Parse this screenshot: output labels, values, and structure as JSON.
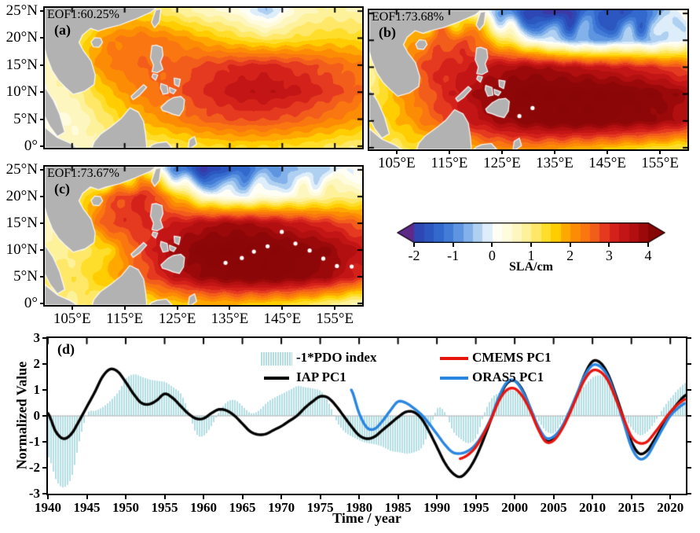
{
  "figure": {
    "background": "#ffffff"
  },
  "panels": {
    "a": {
      "letter": "(a)",
      "eof_label": "EOF1:60.25%"
    },
    "b": {
      "letter": "(b)",
      "eof_label": "EOF1:73.68%"
    },
    "c": {
      "letter": "(c)",
      "eof_label": "EOF1:73.67%"
    },
    "d": {
      "letter": "(d)",
      "xlabel": "Time / year",
      "ylabel": "Normalized Value"
    }
  },
  "map_axes": {
    "x_tick_values": [
      105,
      115,
      125,
      135,
      145,
      155
    ],
    "x_tick_labels": [
      "105°E",
      "115°E",
      "125°E",
      "135°E",
      "145°E",
      "155°E"
    ],
    "y_tick_values": [
      0,
      5,
      10,
      15,
      20,
      25
    ],
    "y_tick_labels": [
      "0°",
      "5°N",
      "10°N",
      "15°N",
      "20°N",
      "25°N"
    ],
    "lon_range": [
      99.8,
      160.2
    ],
    "lat_range": [
      -0.3,
      25.6
    ]
  },
  "colorbar": {
    "label": "SLA/cm",
    "tick_values": [
      -2,
      -1,
      0,
      1,
      2,
      3,
      4
    ],
    "tick_labels": [
      "-2",
      "-1",
      "0",
      "1",
      "2",
      "3",
      "4"
    ],
    "min": -2,
    "max": 4,
    "band_step": 0.25,
    "left_arrow_color": "#5e2a8a",
    "right_arrow_color": "#860606"
  },
  "legend": {
    "items": [
      {
        "label": "-1*PDO index",
        "swatch": "patch",
        "color": "#b2dde2"
      },
      {
        "label": "IAP PC1",
        "swatch": "line",
        "color": "#000000"
      },
      {
        "label": "CMEMS PC1",
        "swatch": "line",
        "color": "#e8150d"
      },
      {
        "label": "ORAS5 PC1",
        "swatch": "line",
        "color": "#2a85e0"
      }
    ]
  },
  "d_axes": {
    "x_tick_values": [
      1940,
      1945,
      1950,
      1955,
      1960,
      1965,
      1970,
      1975,
      1980,
      1985,
      1990,
      1995,
      2000,
      2005,
      2010,
      2015,
      2020
    ],
    "x_tick_labels": [
      "1940",
      "1945",
      "1950",
      "1955",
      "1960",
      "1965",
      "1970",
      "1975",
      "1980",
      "1985",
      "1990",
      "1995",
      "2000",
      "2005",
      "2010",
      "2015",
      "2020"
    ],
    "y_tick_values": [
      3,
      2,
      1,
      0,
      -1,
      -2,
      -3
    ],
    "y_tick_labels": [
      "3",
      "2",
      "1",
      "0",
      "-1",
      "-2",
      "-3"
    ],
    "xlim": [
      1940,
      2022
    ],
    "ylim": [
      -3,
      3
    ]
  },
  "chart_data": [
    {
      "panel": "a",
      "type": "heatmap",
      "label": "EOF1:60.25%",
      "units": "SLA/cm",
      "lons": [
        100,
        106,
        112,
        118,
        124,
        130,
        136,
        142,
        148,
        154,
        160
      ],
      "lats": [
        0,
        5,
        10,
        15,
        20,
        25
      ],
      "values": [
        [
          0.5,
          0.6,
          0.8,
          1.0,
          1.2,
          1.4,
          1.5,
          1.5,
          1.4,
          1.2,
          1.0
        ],
        [
          0.4,
          0.5,
          1.2,
          1.8,
          2.2,
          2.6,
          2.8,
          2.8,
          2.6,
          2.3,
          2.0
        ],
        [
          0.5,
          0.9,
          1.7,
          2.3,
          2.6,
          3.0,
          3.4,
          3.5,
          3.3,
          2.9,
          2.5
        ],
        [
          0.6,
          1.6,
          2.3,
          2.5,
          2.6,
          2.8,
          3.0,
          3.1,
          2.9,
          2.6,
          2.3
        ],
        [
          0.4,
          1.2,
          2.2,
          2.4,
          2.2,
          1.8,
          1.4,
          1.1,
          1.3,
          1.5,
          1.4
        ],
        [
          0.3,
          0.6,
          1.2,
          1.5,
          1.0,
          0.6,
          0.4,
          -0.5,
          0.6,
          0.8,
          0.7
        ]
      ]
    },
    {
      "panel": "b",
      "type": "heatmap",
      "label": "EOF1:73.68%",
      "units": "SLA/cm",
      "lons": [
        100,
        106,
        112,
        118,
        124,
        130,
        136,
        142,
        148,
        154,
        160
      ],
      "lats": [
        0,
        5,
        10,
        15,
        20,
        25
      ],
      "values": [
        [
          1.0,
          1.2,
          1.5,
          1.8,
          2.2,
          2.2,
          2.0,
          1.8,
          1.6,
          1.4,
          1.2
        ],
        [
          1.2,
          1.8,
          2.5,
          3.2,
          3.8,
          4.2,
          4.4,
          4.4,
          4.2,
          4.0,
          3.5
        ],
        [
          1.0,
          2.0,
          2.8,
          3.5,
          4.2,
          4.5,
          4.5,
          4.5,
          4.4,
          4.2,
          3.8
        ],
        [
          0.8,
          2.2,
          3.0,
          3.2,
          3.6,
          3.8,
          3.6,
          3.4,
          3.2,
          3.0,
          2.6
        ],
        [
          0.5,
          1.5,
          2.5,
          2.8,
          1.5,
          0.3,
          -0.5,
          -0.8,
          -0.5,
          -0.6,
          0.2
        ],
        [
          0.3,
          0.8,
          1.5,
          1.2,
          -0.5,
          -1.8,
          -2.2,
          -1.2,
          -1.8,
          -1.0,
          0.5
        ]
      ]
    },
    {
      "panel": "c",
      "type": "heatmap",
      "label": "EOF1:73.67%",
      "units": "SLA/cm",
      "lons": [
        100,
        106,
        112,
        118,
        124,
        130,
        136,
        142,
        148,
        154,
        160
      ],
      "lats": [
        0,
        5,
        10,
        15,
        20,
        25
      ],
      "values": [
        [
          0.9,
          1.0,
          1.1,
          1.3,
          1.6,
          1.8,
          1.8,
          1.6,
          1.4,
          1.0,
          0.6
        ],
        [
          1.0,
          1.2,
          1.8,
          2.5,
          3.4,
          4.0,
          4.3,
          4.4,
          4.2,
          3.8,
          3.0
        ],
        [
          0.8,
          1.0,
          1.5,
          2.8,
          3.8,
          4.4,
          4.5,
          4.5,
          4.3,
          4.0,
          3.4
        ],
        [
          0.5,
          1.5,
          2.8,
          3.0,
          3.2,
          3.6,
          3.8,
          3.6,
          3.3,
          3.0,
          2.5
        ],
        [
          0.3,
          1.0,
          2.5,
          3.2,
          2.0,
          0.5,
          0.0,
          0.3,
          0.5,
          0.8,
          1.0
        ],
        [
          0.2,
          0.3,
          -0.2,
          1.5,
          -0.8,
          -2.0,
          -1.5,
          -0.8,
          -0.5,
          -0.3,
          0.3
        ]
      ]
    },
    {
      "panel": "d",
      "type": "line",
      "xlabel": "Time / year",
      "ylabel": "Normalized Value",
      "xlim": [
        1940,
        2022
      ],
      "ylim": [
        -3,
        3
      ],
      "series": [
        {
          "name": "-1*PDO index",
          "style": "filled-bars",
          "color": "#b2dde2",
          "x_start": 1940,
          "x_step": 1,
          "values": [
            -1.6,
            -2.5,
            -2.75,
            -2.3,
            -0.9,
            0.1,
            0.2,
            0.35,
            0.6,
            0.95,
            1.45,
            1.6,
            1.5,
            1.4,
            1.35,
            1.3,
            1.1,
            0.85,
            0.15,
            -0.7,
            -0.75,
            -0.35,
            0.2,
            0.55,
            0.6,
            0.35,
            0.1,
            0.2,
            0.5,
            0.7,
            0.85,
            1.0,
            1.15,
            1.1,
            1.05,
            0.95,
            0.5,
            -0.2,
            -0.6,
            -0.8,
            -0.95,
            -1.05,
            -1.1,
            -1.2,
            -1.35,
            -1.4,
            -1.45,
            -1.4,
            -1.2,
            -0.5,
            0.3,
            0.1,
            -0.6,
            -0.9,
            -1.05,
            -0.8,
            0.1,
            0.7,
            0.9,
            1.0,
            0.95,
            0.8,
            0.3,
            -0.2,
            -0.6,
            -0.65,
            -0.2,
            0.3,
            0.8,
            1.2,
            1.5,
            1.55,
            1.3,
            0.7,
            0.0,
            -0.5,
            -0.75,
            -0.6,
            -0.2,
            0.3,
            0.7,
            1.05,
            1.3
          ]
        },
        {
          "name": "IAP PC1",
          "style": "line",
          "color": "#000000",
          "x_start": 1940,
          "x_step": 1,
          "values": [
            0.1,
            -0.6,
            -0.88,
            -0.7,
            -0.2,
            0.35,
            0.9,
            1.5,
            1.8,
            1.7,
            1.3,
            0.85,
            0.5,
            0.45,
            0.6,
            0.85,
            0.7,
            0.4,
            0.1,
            -0.1,
            -0.1,
            0.1,
            0.25,
            0.2,
            0.0,
            -0.3,
            -0.6,
            -0.72,
            -0.7,
            -0.55,
            -0.4,
            -0.2,
            0.0,
            0.3,
            0.55,
            0.75,
            0.7,
            0.4,
            0.0,
            -0.4,
            -0.75,
            -0.88,
            -0.8,
            -0.55,
            -0.3,
            -0.05,
            0.15,
            0.15,
            -0.1,
            -0.6,
            -1.2,
            -1.8,
            -2.2,
            -2.35,
            -2.1,
            -1.6,
            -0.9,
            -0.1,
            0.7,
            1.25,
            1.35,
            1.0,
            0.3,
            -0.45,
            -0.95,
            -0.9,
            -0.5,
            0.1,
            0.8,
            1.6,
            2.1,
            2.05,
            1.6,
            0.8,
            -0.1,
            -1.0,
            -1.45,
            -1.35,
            -0.9,
            -0.4,
            0.1,
            0.5,
            0.8
          ]
        },
        {
          "name": "CMEMS PC1",
          "style": "line",
          "color": "#e8150d",
          "x_start": 1993,
          "x_step": 1,
          "values": [
            -1.65,
            -1.5,
            -1.2,
            -0.7,
            -0.1,
            0.6,
            1.0,
            1.05,
            0.75,
            0.2,
            -0.5,
            -1.0,
            -0.95,
            -0.55,
            0.05,
            0.75,
            1.4,
            1.75,
            1.7,
            1.35,
            0.65,
            -0.1,
            -0.8,
            -1.05,
            -1.0,
            -0.65,
            -0.25,
            0.15,
            0.45,
            0.65
          ]
        },
        {
          "name": "ORAS5 PC1",
          "style": "line",
          "color": "#2a85e0",
          "x_start": 1979,
          "x_step": 1,
          "values": [
            1.0,
            0.1,
            -0.45,
            -0.5,
            -0.2,
            0.2,
            0.55,
            0.5,
            0.3,
            0.05,
            -0.3,
            -0.7,
            -1.1,
            -1.4,
            -1.45,
            -1.35,
            -1.1,
            -0.65,
            -0.05,
            0.75,
            1.3,
            1.35,
            0.95,
            0.3,
            -0.4,
            -0.85,
            -0.8,
            -0.45,
            0.15,
            0.85,
            1.55,
            1.95,
            1.9,
            1.5,
            0.7,
            -0.25,
            -1.2,
            -1.65,
            -1.55,
            -1.05,
            -0.5,
            0.0,
            0.3,
            0.5
          ]
        }
      ]
    }
  ]
}
